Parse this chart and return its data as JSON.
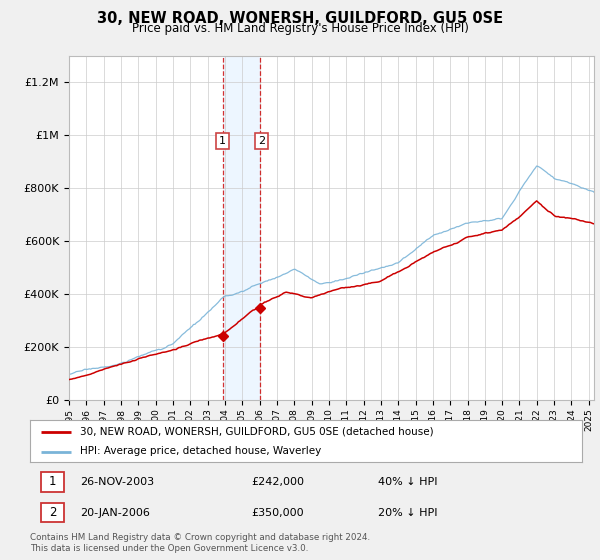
{
  "title": "30, NEW ROAD, WONERSH, GUILDFORD, GU5 0SE",
  "subtitle": "Price paid vs. HM Land Registry's House Price Index (HPI)",
  "ylabel_ticks": [
    "£0",
    "£200K",
    "£400K",
    "£600K",
    "£800K",
    "£1M",
    "£1.2M"
  ],
  "ytick_values": [
    0,
    200000,
    400000,
    600000,
    800000,
    1000000,
    1200000
  ],
  "ylim": [
    0,
    1300000
  ],
  "xlim_start": 1995.0,
  "xlim_end": 2025.3,
  "hpi_color": "#7ab4d8",
  "price_color": "#cc0000",
  "sale1_date_label": "26-NOV-2003",
  "sale1_price_label": "£242,000",
  "sale1_hpi_label": "40% ↓ HPI",
  "sale1_year": 2003.9,
  "sale1_price": 242000,
  "sale2_date_label": "20-JAN-2006",
  "sale2_price_label": "£350,000",
  "sale2_hpi_label": "20% ↓ HPI",
  "sale2_year": 2006.05,
  "sale2_price": 350000,
  "legend_label_price": "30, NEW ROAD, WONERSH, GUILDFORD, GU5 0SE (detached house)",
  "legend_label_hpi": "HPI: Average price, detached house, Waverley",
  "footer": "Contains HM Land Registry data © Crown copyright and database right 2024.\nThis data is licensed under the Open Government Licence v3.0.",
  "bg_color": "#f0f0f0",
  "plot_bg_color": "#ffffff",
  "shade_color": "#ddeeff",
  "shade_alpha": 0.5
}
